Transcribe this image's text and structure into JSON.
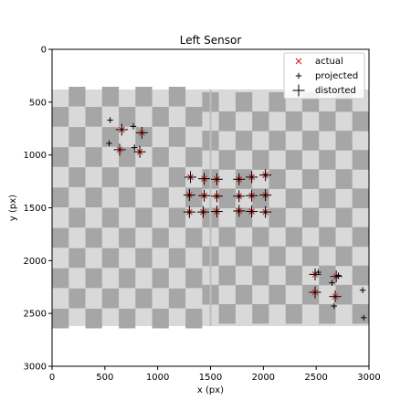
{
  "chart_data": {
    "type": "scatter",
    "title": "Left Sensor",
    "xlabel": "x (px)",
    "ylabel": "y (px)",
    "xlim": [
      0,
      3000
    ],
    "ylim": [
      3000,
      0
    ],
    "y_inverted": true,
    "xticks": [
      0,
      500,
      1000,
      1500,
      2000,
      2500,
      3000
    ],
    "yticks": [
      0,
      500,
      1000,
      1500,
      2000,
      2500,
      3000
    ],
    "background_image": {
      "description": "checkerboard calibration target",
      "extent_x": [
        0,
        3000
      ],
      "extent_y": [
        380,
        2620
      ],
      "colors": {
        "light": "#d9d9d9",
        "dark": "#a6a6a6"
      }
    },
    "legend": {
      "placement": "upper right",
      "entries": [
        "actual",
        "projected",
        "distorted"
      ]
    },
    "series": [
      {
        "name": "actual",
        "marker": "x",
        "color": "#d62728",
        "points": [
          [
            660,
            760
          ],
          [
            850,
            790
          ],
          [
            640,
            950
          ],
          [
            830,
            970
          ],
          [
            1310,
            1210
          ],
          [
            1440,
            1225
          ],
          [
            1560,
            1230
          ],
          [
            1300,
            1380
          ],
          [
            1440,
            1385
          ],
          [
            1560,
            1390
          ],
          [
            1300,
            1540
          ],
          [
            1430,
            1540
          ],
          [
            1560,
            1535
          ],
          [
            1770,
            1230
          ],
          [
            1890,
            1210
          ],
          [
            2020,
            1190
          ],
          [
            1770,
            1390
          ],
          [
            1890,
            1385
          ],
          [
            2020,
            1380
          ],
          [
            1770,
            1530
          ],
          [
            1890,
            1535
          ],
          [
            2020,
            1540
          ],
          [
            2490,
            2130
          ],
          [
            2690,
            2150
          ],
          [
            2490,
            2300
          ],
          [
            2680,
            2340
          ]
        ]
      },
      {
        "name": "projected",
        "marker": "+",
        "color": "#000000",
        "points": [
          [
            550,
            670
          ],
          [
            770,
            730
          ],
          [
            540,
            890
          ],
          [
            780,
            930
          ],
          [
            1310,
            1210
          ],
          [
            1440,
            1225
          ],
          [
            1560,
            1230
          ],
          [
            1300,
            1380
          ],
          [
            1440,
            1385
          ],
          [
            1560,
            1390
          ],
          [
            1300,
            1540
          ],
          [
            1430,
            1540
          ],
          [
            1560,
            1535
          ],
          [
            1770,
            1230
          ],
          [
            1890,
            1210
          ],
          [
            2020,
            1190
          ],
          [
            1770,
            1390
          ],
          [
            1890,
            1385
          ],
          [
            2020,
            1380
          ],
          [
            1770,
            1530
          ],
          [
            1890,
            1535
          ],
          [
            2020,
            1540
          ],
          [
            2520,
            2110
          ],
          [
            2710,
            2140
          ],
          [
            2650,
            2210
          ],
          [
            2940,
            2280
          ],
          [
            2670,
            2430
          ],
          [
            2950,
            2540
          ]
        ]
      },
      {
        "name": "distorted",
        "marker": "+",
        "color": "#000000",
        "points": [
          [
            660,
            760
          ],
          [
            850,
            790
          ],
          [
            640,
            950
          ],
          [
            830,
            970
          ],
          [
            1310,
            1210
          ],
          [
            1440,
            1225
          ],
          [
            1560,
            1230
          ],
          [
            1300,
            1380
          ],
          [
            1440,
            1385
          ],
          [
            1560,
            1390
          ],
          [
            1300,
            1540
          ],
          [
            1430,
            1540
          ],
          [
            1560,
            1535
          ],
          [
            1770,
            1230
          ],
          [
            1890,
            1210
          ],
          [
            2020,
            1190
          ],
          [
            1770,
            1390
          ],
          [
            1890,
            1385
          ],
          [
            2020,
            1380
          ],
          [
            1770,
            1530
          ],
          [
            1890,
            1535
          ],
          [
            2020,
            1540
          ],
          [
            2490,
            2130
          ],
          [
            2690,
            2150
          ],
          [
            2490,
            2300
          ],
          [
            2680,
            2340
          ]
        ]
      }
    ]
  }
}
